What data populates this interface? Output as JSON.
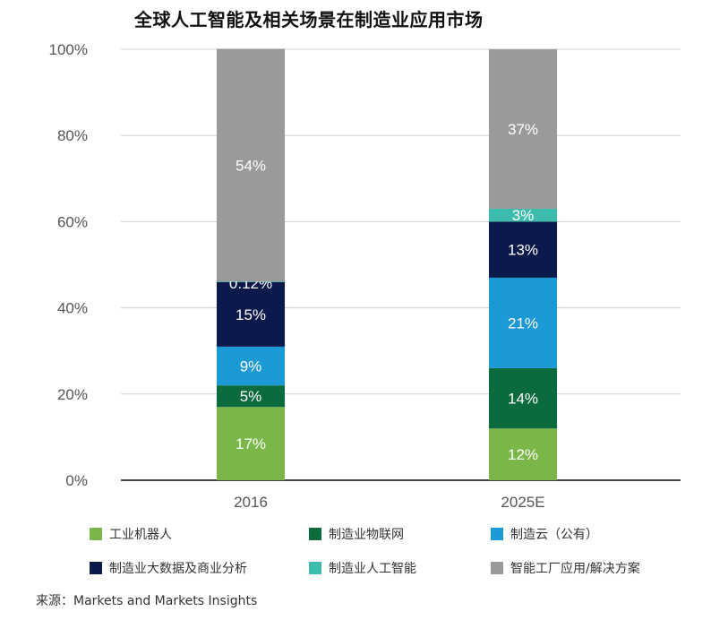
{
  "chart_data": {
    "type": "bar",
    "stacked": true,
    "title": "全球人工智能及相关场景在制造业应用市场",
    "categories": [
      "2016",
      "2025E"
    ],
    "ylim": [
      0,
      100
    ],
    "yticks": [
      "0%",
      "20%",
      "40%",
      "60%",
      "80%",
      "100%"
    ],
    "grid": true,
    "series": [
      {
        "name": "工业机器人",
        "color": "#7ab648",
        "values": [
          17,
          12
        ],
        "labels": [
          "17%",
          "12%"
        ]
      },
      {
        "name": "制造业物联网",
        "color": "#0c6b3c",
        "values": [
          5,
          14
        ],
        "labels": [
          "5%",
          "14%"
        ]
      },
      {
        "name": "制造云（公有）",
        "color": "#1c9ad6",
        "values": [
          9,
          21
        ],
        "labels": [
          "9%",
          "21%"
        ]
      },
      {
        "name": "制造业大数据及商业分析",
        "color": "#0b1a4a",
        "values": [
          15,
          13
        ],
        "labels": [
          "15%",
          "13%"
        ]
      },
      {
        "name": "制造业人工智能",
        "color": "#3dbcae",
        "values": [
          0.12,
          3
        ],
        "labels": [
          "0.12%",
          "3%"
        ]
      },
      {
        "name": "智能工厂应用/解决方案",
        "color": "#9a9a9a",
        "values": [
          54,
          37
        ],
        "labels": [
          "54%",
          "37%"
        ]
      }
    ]
  },
  "source": "来源：Markets and Markets Insights"
}
